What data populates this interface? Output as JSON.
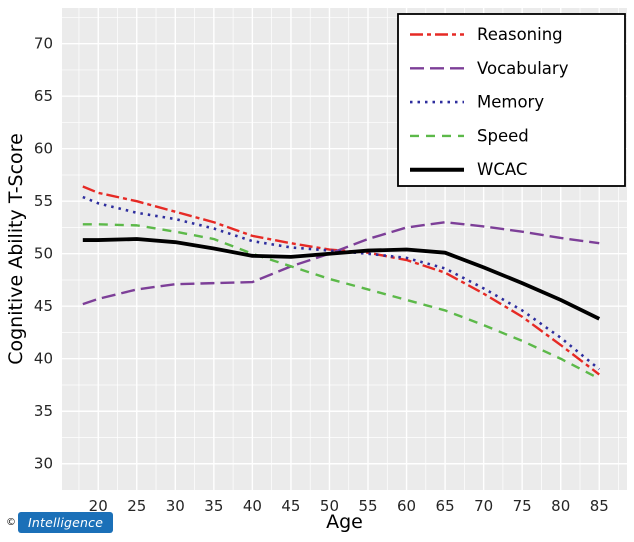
{
  "chart_data": {
    "type": "line",
    "title": "",
    "xlabel": "Age",
    "ylabel": "Cognitive Ability T-Score",
    "x": [
      18,
      20,
      25,
      30,
      35,
      40,
      45,
      50,
      55,
      60,
      65,
      70,
      75,
      80,
      85
    ],
    "xlim": [
      15.3,
      88.6
    ],
    "ylim": [
      27.5,
      73.4
    ],
    "x_ticks": [
      20,
      25,
      30,
      35,
      40,
      45,
      50,
      55,
      60,
      65,
      70,
      75,
      80,
      85
    ],
    "y_ticks": [
      30,
      35,
      40,
      45,
      50,
      55,
      60,
      65,
      70
    ],
    "grid": "major+minor",
    "panel_bg": "#ebebeb",
    "grid_color": "#ffffff",
    "legend_position": "top-right",
    "series": [
      {
        "name": "Reasoning",
        "color": "#e62a25",
        "dash": "13 4 4 4",
        "width": 2.4,
        "values": [
          56.4,
          55.8,
          55.0,
          54.0,
          53.0,
          51.7,
          51.0,
          50.4,
          50.1,
          49.4,
          48.2,
          46.2,
          44.0,
          41.3,
          38.5
        ]
      },
      {
        "name": "Vocabulary",
        "color": "#7d3f98",
        "dash": "14 6",
        "width": 2.4,
        "values": [
          45.2,
          45.7,
          46.6,
          47.1,
          47.2,
          47.3,
          48.8,
          50.0,
          51.4,
          52.5,
          53.0,
          52.6,
          52.1,
          51.5,
          51.0
        ]
      },
      {
        "name": "Memory",
        "color": "#2e2e9e",
        "dash": "2.5 5",
        "width": 2.6,
        "values": [
          55.4,
          54.8,
          53.9,
          53.3,
          52.4,
          51.2,
          50.6,
          50.3,
          50.0,
          49.6,
          48.6,
          46.7,
          44.6,
          42.0,
          39.0
        ]
      },
      {
        "name": "Speed",
        "color": "#5cb949",
        "dash": "9 7",
        "width": 2.4,
        "values": [
          52.8,
          52.8,
          52.7,
          52.1,
          51.4,
          50.0,
          48.8,
          47.6,
          46.6,
          45.6,
          44.6,
          43.2,
          41.7,
          40.0,
          38.1
        ]
      },
      {
        "name": "WCAC",
        "color": "#000000",
        "dash": "",
        "width": 3.8,
        "values": [
          51.3,
          51.3,
          51.4,
          51.1,
          50.5,
          49.8,
          49.7,
          50.0,
          50.3,
          50.4,
          50.1,
          48.7,
          47.2,
          45.6,
          43.8
        ]
      }
    ]
  },
  "watermark": {
    "copyright": "©",
    "label": "Intelligence"
  }
}
